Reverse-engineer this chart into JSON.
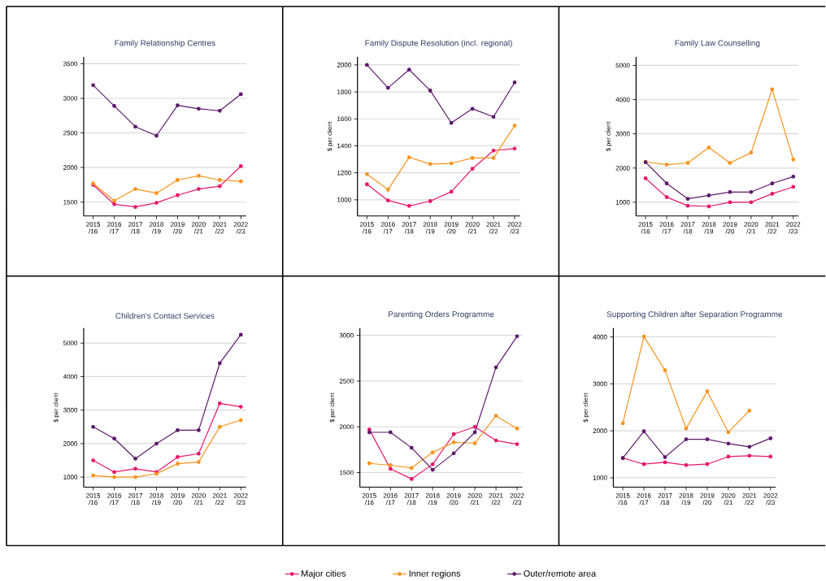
{
  "chart_data": [
    {
      "type": "line",
      "title": "Family Relationship Centres",
      "categories": [
        "2015 /16",
        "2016 /17",
        "2017 /18",
        "2018 /19",
        "2019 /20",
        "2020 /21",
        "2021 /22",
        "2022 /23"
      ],
      "ylim": [
        1300,
        3600
      ],
      "yticks": [
        1500,
        2000,
        2500,
        3000,
        3500
      ],
      "grid": "y",
      "marker": "circle",
      "series": [
        {
          "color": "#e6176b",
          "values": [
            1750,
            1470,
            1430,
            1490,
            1600,
            1690,
            1730,
            2020
          ]
        },
        {
          "color": "#f7941d",
          "values": [
            1770,
            1520,
            1690,
            1630,
            1820,
            1880,
            1820,
            1800
          ]
        },
        {
          "color": "#5c1a6b",
          "values": [
            3190,
            2890,
            2590,
            2460,
            2900,
            2850,
            2820,
            3060
          ]
        }
      ]
    },
    {
      "type": "line",
      "title": "Family Dispute Resolution  (incl. regional)",
      "ylabel": "$ per client",
      "categories": [
        "2015 /16",
        "2016 /17",
        "2017 /18",
        "2018 /19",
        "2019 /20",
        "2020 /21",
        "2021 /22",
        "2022 /23"
      ],
      "ylim": [
        880,
        2060
      ],
      "yticks": [
        1000,
        1200,
        1400,
        1600,
        1800,
        2000
      ],
      "grid": "y",
      "marker": "circle",
      "series": [
        {
          "color": "#e6176b",
          "values": [
            1115,
            995,
            955,
            990,
            1060,
            1230,
            1365,
            1380
          ]
        },
        {
          "color": "#f7941d",
          "values": [
            1190,
            1075,
            1315,
            1265,
            1270,
            1310,
            1310,
            1550
          ]
        },
        {
          "color": "#5c1a6b",
          "values": [
            2000,
            1830,
            1965,
            1810,
            1570,
            1675,
            1615,
            1870
          ]
        }
      ]
    },
    {
      "type": "line",
      "title": "Family Law Counselling",
      "ylabel": "$ per client",
      "categories": [
        "2015 /16",
        "2016 /17",
        "2017 /18",
        "2018 /19",
        "2019 /20",
        "2020 /21",
        "2021 /22",
        "2022 /23"
      ],
      "ylim": [
        600,
        5250
      ],
      "yticks": [
        1000,
        2000,
        3000,
        4000,
        5000
      ],
      "grid": "y",
      "marker": "circle",
      "series": [
        {
          "color": "#e6176b",
          "values": [
            1700,
            1150,
            900,
            880,
            1000,
            1000,
            1250,
            1450
          ]
        },
        {
          "color": "#f7941d",
          "values": [
            2180,
            2100,
            2150,
            2600,
            2150,
            2450,
            4300,
            2250
          ]
        },
        {
          "color": "#5c1a6b",
          "values": [
            2170,
            1550,
            1100,
            1200,
            1300,
            1300,
            1550,
            1750
          ]
        }
      ]
    },
    {
      "type": "line",
      "title": "Children's Contact Services",
      "ylabel": "$ per client",
      "categories": [
        "2015 /16",
        "2016 /17",
        "2017 /18",
        "2018 /19",
        "2019 /20",
        "2020 /21",
        "2021 /22",
        "2022 /23"
      ],
      "ylim": [
        700,
        5450
      ],
      "yticks": [
        1000,
        2000,
        3000,
        4000,
        5000
      ],
      "grid": "y",
      "marker": "circle",
      "series": [
        {
          "color": "#e6176b",
          "values": [
            1500,
            1150,
            1250,
            1150,
            1600,
            1700,
            3200,
            3100
          ]
        },
        {
          "color": "#f7941d",
          "values": [
            1050,
            1000,
            1000,
            1100,
            1400,
            1450,
            2500,
            2700
          ]
        },
        {
          "color": "#5c1a6b",
          "values": [
            2500,
            2150,
            1550,
            2000,
            2400,
            2400,
            4400,
            5250
          ]
        }
      ]
    },
    {
      "type": "line",
      "title": "Parenting Orders Programme",
      "ylabel": "$ per client",
      "categories": [
        "2015 /16",
        "2016 /17",
        "2017 /18",
        "2018 /19",
        "2019 /20",
        "2020 /21",
        "2021 /22",
        "2022 /23"
      ],
      "ylim": [
        1340,
        3080
      ],
      "yticks": [
        1500,
        2000,
        2500,
        3000
      ],
      "grid": "y",
      "marker": "circle",
      "legend": "bottom",
      "series": [
        {
          "name": "Major cities",
          "color": "#e6176b",
          "values": [
            1970,
            1540,
            1430,
            1590,
            1920,
            2000,
            1850,
            1810
          ]
        },
        {
          "name": "Inner regions",
          "color": "#f7941d",
          "values": [
            1600,
            1580,
            1550,
            1720,
            1830,
            1820,
            2120,
            1980
          ]
        },
        {
          "name": "Outer/remote area",
          "color": "#5c1a6b",
          "values": [
            1940,
            1940,
            1770,
            1530,
            1710,
            1940,
            2650,
            2990
          ]
        }
      ]
    },
    {
      "type": "line",
      "title": "Supporting Children after Separation Programme",
      "ylabel": "$ per client",
      "categories": [
        "2015 /16",
        "2016 /17",
        "2017 /18",
        "2018 /19",
        "2019 /20",
        "2020 /21",
        "2021 /22",
        "2022 /23"
      ],
      "ylim": [
        800,
        4190
      ],
      "yticks": [
        1000,
        2000,
        3000,
        4000
      ],
      "grid": "y",
      "marker": "circle",
      "series": [
        {
          "color": "#e6176b",
          "values": [
            1420,
            1290,
            1330,
            1270,
            1290,
            1450,
            1470,
            1450
          ]
        },
        {
          "color": "#f7941d",
          "values": [
            2160,
            4010,
            3290,
            2050,
            2840,
            1970,
            2430,
            null
          ]
        },
        {
          "color": "#5c1a6b",
          "values": [
            1420,
            1990,
            1440,
            1820,
            1820,
            1730,
            1660,
            1840
          ]
        }
      ]
    }
  ]
}
